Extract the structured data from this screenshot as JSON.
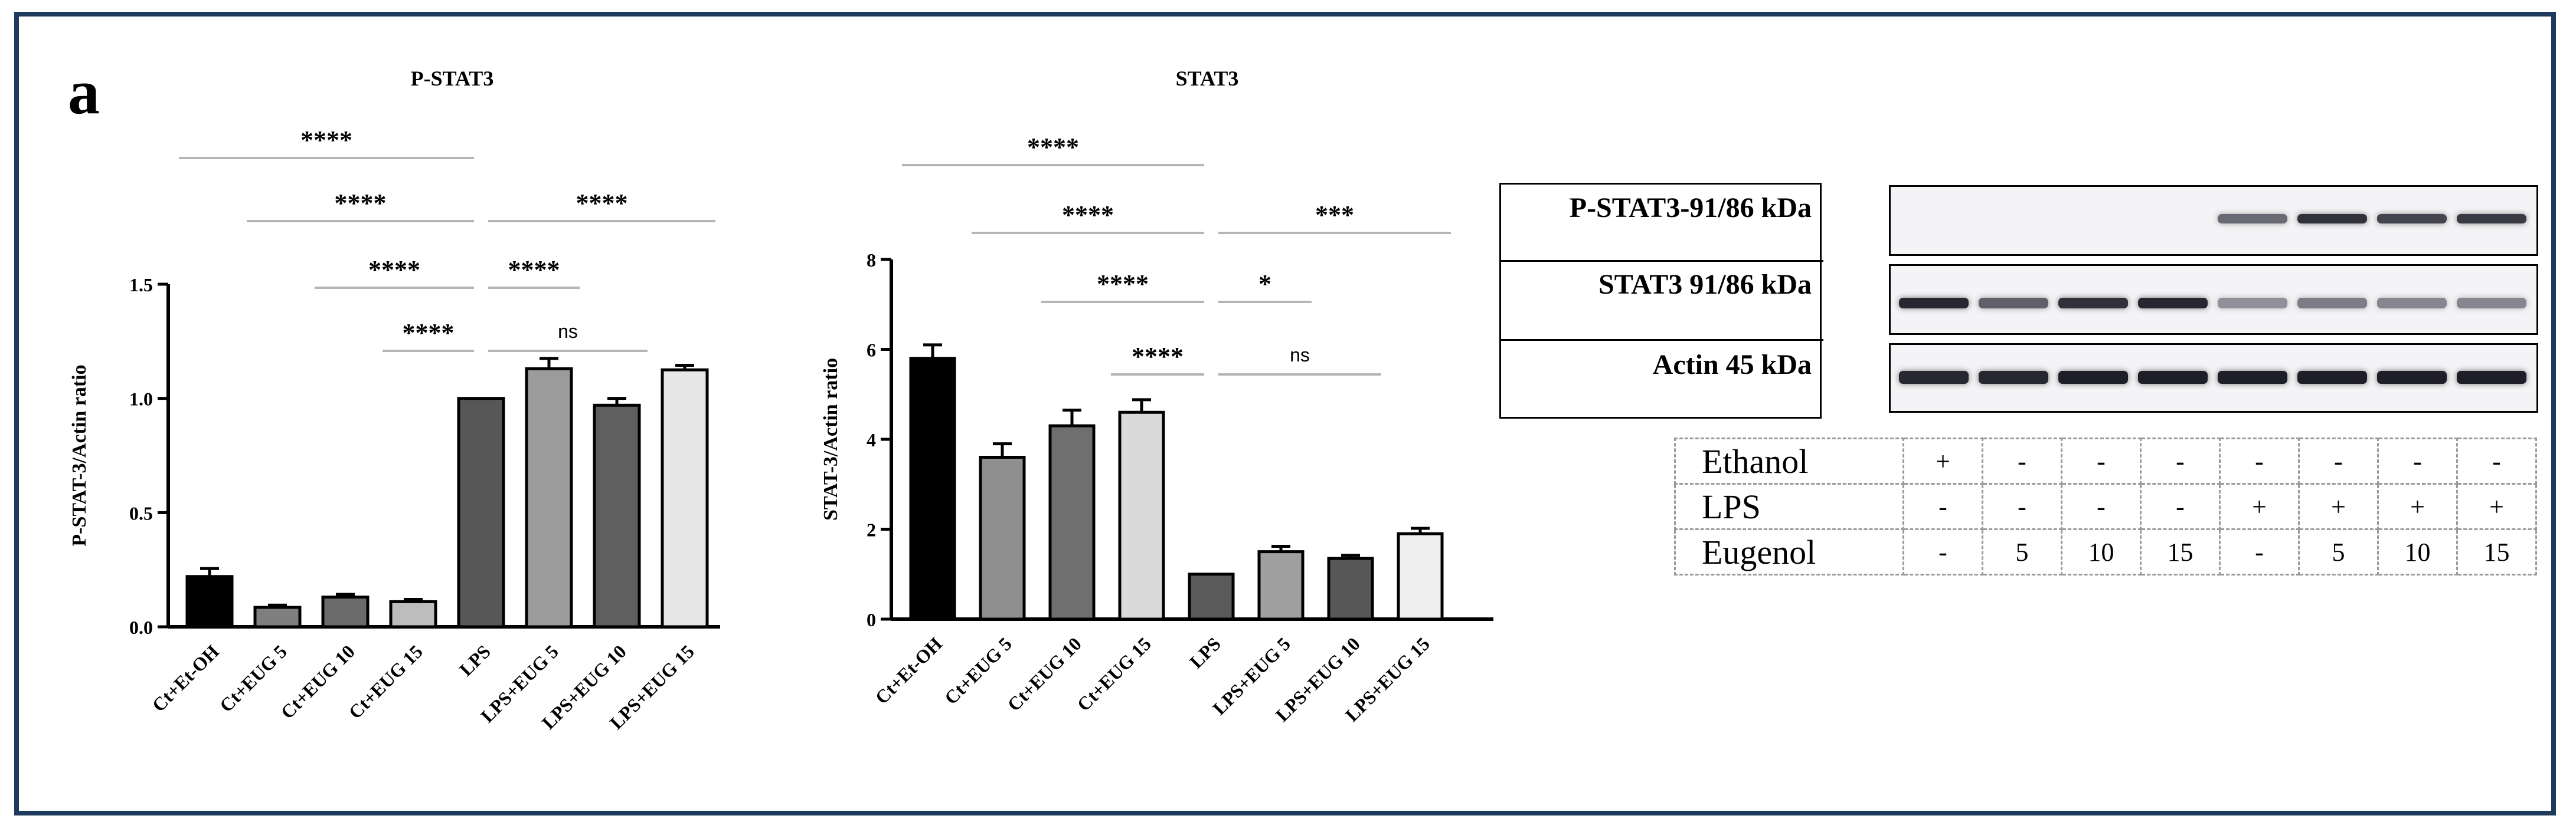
{
  "figure": {
    "panel_label": "a"
  },
  "chart_data": [
    {
      "type": "bar",
      "title": "P-STAT3",
      "xlabel": "",
      "ylabel": "P-STAT-3/Actin ratio",
      "ylim": [
        0,
        1.5
      ],
      "yticks": [
        0.0,
        0.5,
        1.0,
        1.5
      ],
      "ytick_labels": [
        "0.0",
        "0.5",
        "1.0",
        "1.5"
      ],
      "categories": [
        "Ct+Et-OH",
        "Ct+EUG 5",
        "Ct+EUG 10",
        "Ct+EUG 15",
        "LPS",
        "LPS+EUG 5",
        "LPS+EUG 10",
        "LPS+EUG 15"
      ],
      "values": [
        0.22,
        0.085,
        0.13,
        0.11,
        1.0,
        1.13,
        0.97,
        1.125
      ],
      "errors": [
        0.035,
        0.01,
        0.012,
        0.01,
        0.0,
        0.045,
        0.03,
        0.02
      ],
      "colors": [
        "#000000",
        "#7f7f7f",
        "#6b6b6b",
        "#bdbdbd",
        "#575757",
        "#9b9b9b",
        "#5f5f5f",
        "#e6e6e6"
      ],
      "comparisons": [
        {
          "from": 0,
          "to": 4,
          "label": "****"
        },
        {
          "from": 1,
          "to": 4,
          "label": "****"
        },
        {
          "from": 4,
          "to": 7,
          "label": "****"
        },
        {
          "from": 2,
          "to": 4,
          "label": "****"
        },
        {
          "from": 4,
          "to": 5,
          "label": "****"
        },
        {
          "from": 3,
          "to": 4,
          "label": "****"
        },
        {
          "from": 4,
          "to": 6,
          "label": "ns"
        }
      ]
    },
    {
      "type": "bar",
      "title": "STAT3",
      "xlabel": "",
      "ylabel": "STAT-3/Actin ratio",
      "ylim": [
        0,
        8
      ],
      "yticks": [
        0,
        2,
        4,
        6,
        8
      ],
      "ytick_labels": [
        "0",
        "2",
        "4",
        "6",
        "8"
      ],
      "categories": [
        "Ct+Et-OH",
        "Ct+EUG 5",
        "Ct+EUG 10",
        "Ct+EUG 15",
        "LPS",
        "LPS+EUG 5",
        "LPS+EUG 10",
        "LPS+EUG 15"
      ],
      "values": [
        5.8,
        3.6,
        4.3,
        4.6,
        1.0,
        1.5,
        1.35,
        1.9
      ],
      "errors": [
        0.3,
        0.3,
        0.35,
        0.28,
        0.0,
        0.12,
        0.07,
        0.12
      ],
      "colors": [
        "#000000",
        "#8f8f8f",
        "#6f6f6f",
        "#dadada",
        "#5a5a5a",
        "#9f9f9f",
        "#575757",
        "#eeeeee"
      ],
      "comparisons": [
        {
          "from": 0,
          "to": 4,
          "label": "****"
        },
        {
          "from": 1,
          "to": 4,
          "label": "****"
        },
        {
          "from": 4,
          "to": 7,
          "label": "***"
        },
        {
          "from": 2,
          "to": 4,
          "label": "****"
        },
        {
          "from": 4,
          "to": 5,
          "label": "*"
        },
        {
          "from": 3,
          "to": 4,
          "label": "****"
        },
        {
          "from": 4,
          "to": 6,
          "label": "ns"
        }
      ]
    }
  ],
  "western_blot": {
    "labels": [
      "P-STAT3-91/86 kDa",
      "STAT3 91/86 kDa",
      "Actin 45 kDa"
    ],
    "band_intensity": {
      "p_stat3": [
        0.0,
        0.0,
        0.0,
        0.0,
        0.55,
        0.85,
        0.75,
        0.8
      ],
      "stat3": [
        0.9,
        0.6,
        0.85,
        0.9,
        0.35,
        0.45,
        0.4,
        0.4
      ],
      "actin": [
        0.9,
        0.9,
        0.95,
        0.95,
        0.95,
        0.95,
        0.95,
        0.95
      ]
    },
    "conditions": [
      {
        "name": "Ethanol",
        "values": [
          "+",
          "-",
          "-",
          "-",
          "-",
          "-",
          "-",
          "-"
        ]
      },
      {
        "name": "LPS",
        "values": [
          "-",
          "-",
          "-",
          "-",
          "+",
          "+",
          "+",
          "+"
        ]
      },
      {
        "name": "Eugenol",
        "values": [
          "-",
          "5",
          "10",
          "15",
          "-",
          "5",
          "10",
          "15"
        ]
      }
    ]
  }
}
